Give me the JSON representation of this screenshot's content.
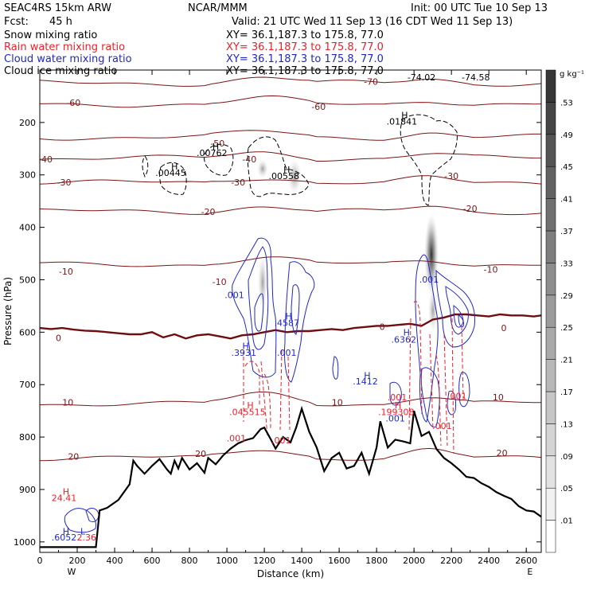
{
  "header": {
    "model": "SEAC4RS 15km ARW",
    "org": "NCAR/MMM",
    "init": "Init: 00 UTC Tue 10 Sep 13",
    "fcst_label": "Fcst:",
    "fcst_value": "45 h",
    "valid": "Valid: 21 UTC Wed 11 Sep 13 (16 CDT Wed 11 Sep 13)"
  },
  "fields": [
    {
      "name": "Snow mixing ratio",
      "xy": "XY=  36.1,187.3 to 175.8, 77.0",
      "color": "#000000"
    },
    {
      "name": "Rain water mixing ratio",
      "xy": "XY=  36.1,187.3 to 175.8, 77.0",
      "color": "#e8212b"
    },
    {
      "name": "Cloud water mixing ratio",
      "xy": "XY=  36.1,187.3 to 175.8, 77.0",
      "color": "#2028c8"
    },
    {
      "name": "Cloud ice mixing ratio",
      "xy": "XY=  36.1,187.3 to 175.8, 77.0",
      "color": "#000000"
    }
  ],
  "colorbar": {
    "unit": "g kg⁻¹",
    "ticks": [
      ".01",
      ".05",
      ".09",
      ".13",
      ".17",
      ".21",
      ".25",
      ".29",
      ".33",
      ".37",
      ".41",
      ".45",
      ".49",
      ".53"
    ]
  },
  "chart_data": {
    "type": "cross-section",
    "xlabel": "Distance (km)",
    "ylabel": "Pressure (hPa)",
    "xlim": [
      0,
      2680
    ],
    "ylim": [
      1020,
      100
    ],
    "x_ticks": [
      0,
      200,
      400,
      600,
      800,
      1000,
      1200,
      1400,
      1600,
      1800,
      2000,
      2200,
      2400,
      2600
    ],
    "y_ticks": [
      200,
      300,
      400,
      500,
      600,
      700,
      800,
      900,
      1000
    ],
    "y_tick_labels": [
      "200",
      "300",
      "400",
      "500",
      "600",
      "700",
      "800",
      "900",
      "1000"
    ],
    "direction_left": "W",
    "direction_right": "E",
    "isotherm_labels": [
      {
        "text": "-70",
        "x": 1770,
        "y": 128
      },
      {
        "text": "-60",
        "x": 180,
        "y": 168
      },
      {
        "text": "-60",
        "x": 1490,
        "y": 176
      },
      {
        "text": "-50",
        "x": 950,
        "y": 246
      },
      {
        "text": "-40",
        "x": 30,
        "y": 276
      },
      {
        "text": "-40",
        "x": 1120,
        "y": 276
      },
      {
        "text": "-30",
        "x": 130,
        "y": 320
      },
      {
        "text": "-30",
        "x": 1060,
        "y": 320
      },
      {
        "text": "-30",
        "x": 2200,
        "y": 308
      },
      {
        "text": "-20",
        "x": 900,
        "y": 376
      },
      {
        "text": "-20",
        "x": 2300,
        "y": 370
      },
      {
        "text": "-10",
        "x": 140,
        "y": 490
      },
      {
        "text": "-10",
        "x": 960,
        "y": 510
      },
      {
        "text": "-10",
        "x": 2410,
        "y": 486
      },
      {
        "text": "0",
        "x": 100,
        "y": 617
      },
      {
        "text": "0",
        "x": 1830,
        "y": 596
      },
      {
        "text": "0",
        "x": 2480,
        "y": 598
      },
      {
        "text": "10",
        "x": 150,
        "y": 740
      },
      {
        "text": "10",
        "x": 1590,
        "y": 740
      },
      {
        "text": "10",
        "x": 2450,
        "y": 730
      },
      {
        "text": "20",
        "x": 180,
        "y": 843
      },
      {
        "text": "20",
        "x": 860,
        "y": 838
      },
      {
        "text": "20",
        "x": 2470,
        "y": 836
      }
    ],
    "isotherm_values": [
      -70,
      -60,
      -50,
      -40,
      -30,
      -20,
      -10,
      0,
      10,
      20
    ],
    "terrain": {
      "x": [
        0,
        280,
        300,
        320,
        360,
        420,
        480,
        500,
        520,
        560,
        600,
        640,
        680,
        700,
        720,
        740,
        760,
        800,
        840,
        880,
        900,
        940,
        980,
        1020,
        1060,
        1100,
        1140,
        1180,
        1200,
        1240,
        1260,
        1300,
        1340,
        1370,
        1400,
        1440,
        1480,
        1520,
        1560,
        1600,
        1640,
        1680,
        1720,
        1760,
        1800,
        1820,
        1860,
        1900,
        1940,
        1980,
        2000,
        2040,
        2080,
        2120,
        2160,
        2200,
        2240,
        2280,
        2320,
        2360,
        2400,
        2440,
        2480,
        2520,
        2560,
        2600,
        2640,
        2680
      ],
      "p": [
        1010,
        1010,
        1010,
        940,
        935,
        920,
        890,
        845,
        855,
        870,
        855,
        842,
        862,
        870,
        845,
        860,
        840,
        862,
        850,
        868,
        840,
        852,
        835,
        822,
        812,
        806,
        802,
        785,
        782,
        808,
        822,
        800,
        810,
        782,
        746,
        790,
        820,
        865,
        840,
        830,
        860,
        855,
        830,
        870,
        820,
        770,
        820,
        805,
        808,
        812,
        750,
        798,
        790,
        823,
        840,
        850,
        862,
        876,
        878,
        888,
        895,
        905,
        912,
        918,
        932,
        940,
        942,
        952
      ]
    },
    "freezing_level": {
      "x": [
        0,
        60,
        120,
        180,
        240,
        300,
        360,
        420,
        480,
        540,
        600,
        660,
        720,
        780,
        840,
        900,
        960,
        1020,
        1080,
        1140,
        1200,
        1260,
        1320,
        1380,
        1440,
        1500,
        1560,
        1620,
        1680,
        1740,
        1800,
        1860,
        1920,
        1980,
        2040,
        2100,
        2160,
        2220,
        2280,
        2340,
        2400,
        2460,
        2520,
        2580,
        2640,
        2680
      ],
      "p": [
        592,
        594,
        592,
        595,
        597,
        598,
        600,
        602,
        604,
        604,
        600,
        610,
        604,
        612,
        606,
        604,
        608,
        612,
        606,
        604,
        600,
        596,
        600,
        598,
        598,
        596,
        594,
        596,
        592,
        590,
        588,
        588,
        586,
        584,
        588,
        576,
        572,
        566,
        566,
        568,
        570,
        566,
        568,
        568,
        570,
        568
      ]
    },
    "cloud_water_labels": [
      {
        "text": ".001",
        "x": 1040,
        "y": 535
      },
      {
        "text": "H",
        "x": 1330,
        "y": 575
      },
      {
        "text": ".4587",
        "x": 1320,
        "y": 588
      },
      {
        "text": "H",
        "x": 1100,
        "y": 632
      },
      {
        "text": ".3931",
        "x": 1090,
        "y": 645
      },
      {
        "text": ".001",
        "x": 1320,
        "y": 645
      },
      {
        "text": "H",
        "x": 1750,
        "y": 688
      },
      {
        "text": ".1412",
        "x": 1740,
        "y": 700
      },
      {
        "text": ".001",
        "x": 2080,
        "y": 505
      },
      {
        "text": "H",
        "x": 1960,
        "y": 606
      },
      {
        "text": ".6362",
        "x": 1945,
        "y": 620
      },
      {
        "text": ".001",
        "x": 1900,
        "y": 770
      },
      {
        "text": "H",
        "x": 140,
        "y": 986
      },
      {
        "text": ".6052",
        "x": 130,
        "y": 997
      },
      {
        "text": "L",
        "x": 230,
        "y": 986
      }
    ],
    "rain_labels": [
      {
        "text": ".001",
        "x": 1910,
        "y": 730
      },
      {
        "text": ".001",
        "x": 2230,
        "y": 728
      },
      {
        "text": "H",
        "x": 1125,
        "y": 745
      },
      {
        "text": ".045515",
        "x": 1110,
        "y": 758
      },
      {
        "text": "H",
        "x": 1915,
        "y": 745
      },
      {
        "text": ".199308",
        "x": 1905,
        "y": 758
      },
      {
        "text": ".001",
        "x": 2150,
        "y": 785
      },
      {
        "text": ".001",
        "x": 1050,
        "y": 808
      },
      {
        "text": ".001",
        "x": 1290,
        "y": 812
      },
      {
        "text": "H",
        "x": 140,
        "y": 910
      },
      {
        "text": "24.41",
        "x": 130,
        "y": 922
      },
      {
        "text": "2.36",
        "x": 250,
        "y": 997
      }
    ],
    "ice_labels": [
      {
        "text": "H",
        "x": 940,
        "y": 252
      },
      {
        "text": ".00762",
        "x": 920,
        "y": 264
      },
      {
        "text": "H",
        "x": 720,
        "y": 290
      },
      {
        "text": ".00445",
        "x": 700,
        "y": 302
      },
      {
        "text": "H",
        "x": 1320,
        "y": 296
      },
      {
        "text": ".00558",
        "x": 1305,
        "y": 308
      },
      {
        "text": "H",
        "x": 1950,
        "y": 192
      },
      {
        "text": ".01841",
        "x": 1935,
        "y": 204
      },
      {
        "text": "-74.02",
        "x": 2040,
        "y": 120
      },
      {
        "text": "-74.58",
        "x": 2330,
        "y": 120
      }
    ]
  }
}
